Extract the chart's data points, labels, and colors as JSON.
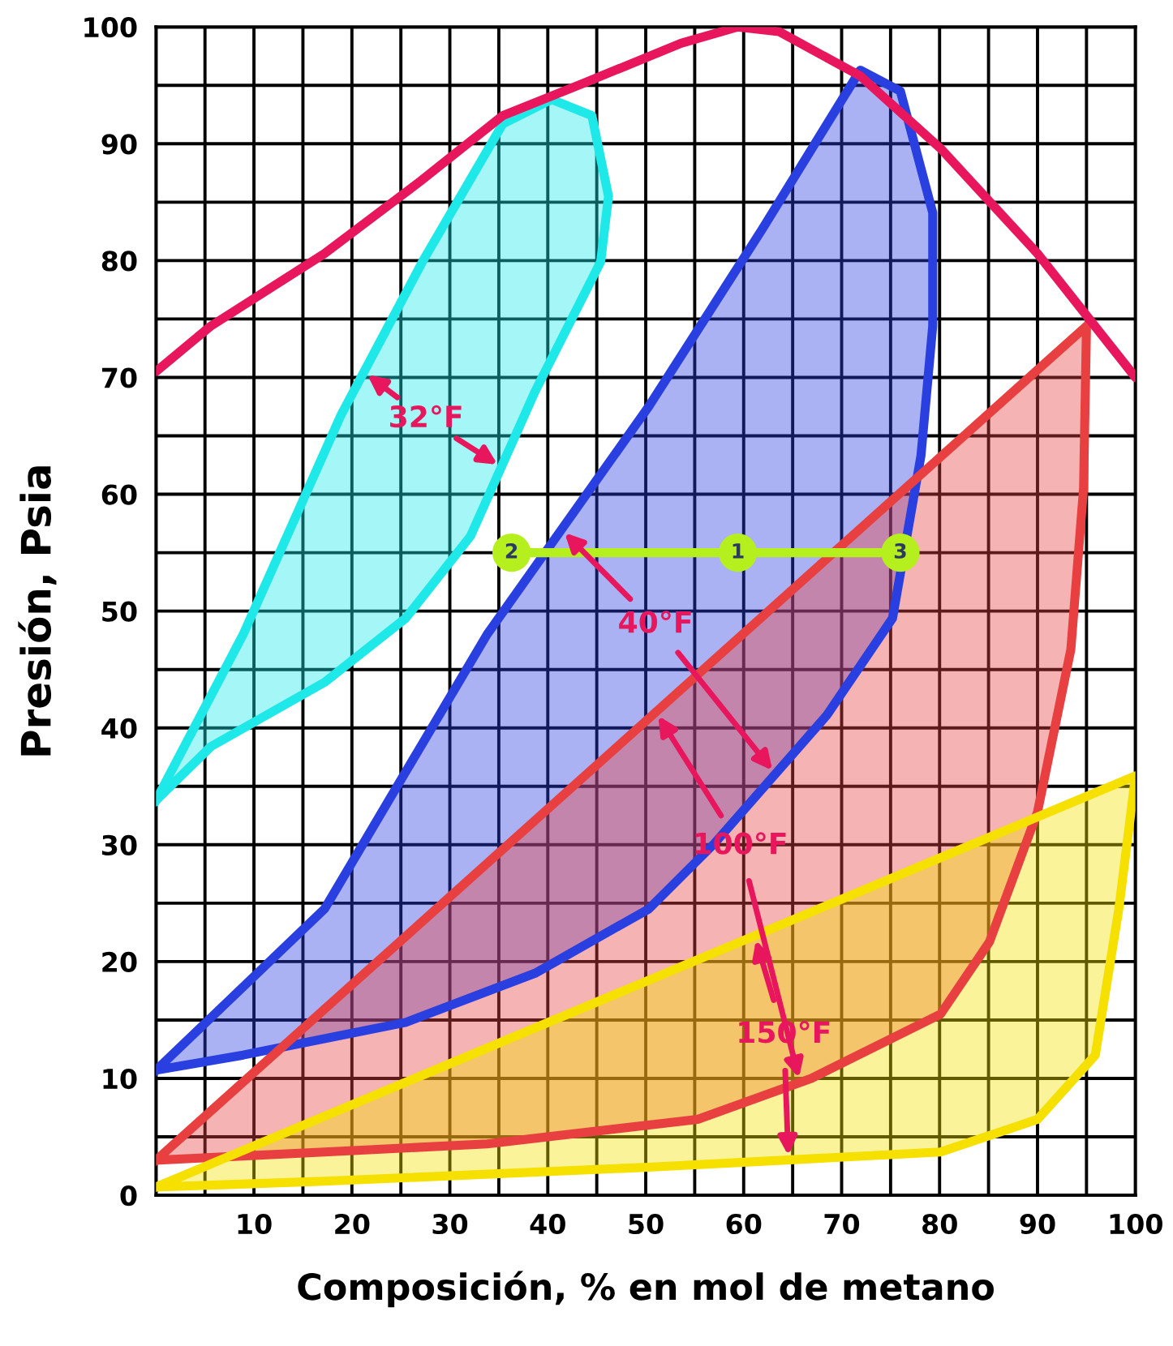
{
  "chart_data": {
    "type": "line",
    "xlabel": "Composición, % en mol de metano",
    "ylabel": "Presión, Psia",
    "xlim": [
      0,
      100
    ],
    "ylim": [
      0,
      100
    ],
    "xticks": [
      {
        "value": 0,
        "label": null
      },
      {
        "value": 5,
        "label": null
      },
      10,
      {
        "value": 15,
        "label": null
      },
      20,
      {
        "value": 25,
        "label": null
      },
      30,
      {
        "value": 35,
        "label": null
      },
      40,
      {
        "value": 45,
        "label": null
      },
      50,
      {
        "value": 55,
        "label": null
      },
      60,
      {
        "value": 65,
        "label": null
      },
      70,
      {
        "value": 75,
        "label": null
      },
      80,
      {
        "value": 85,
        "label": null
      },
      90,
      {
        "value": 95,
        "label": null
      },
      100
    ],
    "yticks": [
      0,
      {
        "value": 5,
        "label": null
      },
      10,
      {
        "value": 15,
        "label": null
      },
      20,
      {
        "value": 25,
        "label": null
      },
      30,
      {
        "value": 35,
        "label": null
      },
      40,
      {
        "value": 45,
        "label": null
      },
      50,
      {
        "value": 55,
        "label": null
      },
      60,
      {
        "value": 65,
        "label": null
      },
      70,
      {
        "value": 75,
        "label": null
      },
      80,
      {
        "value": 85,
        "label": null
      },
      90,
      {
        "value": 95,
        "label": null
      },
      100
    ],
    "grid": true,
    "legend": false,
    "series": [
      {
        "color": "#e8175d",
        "x": [
          0,
          5.6,
          17.2,
          27,
          35.4,
          43.7,
          53.6,
          59.4,
          63.6,
          71.9,
          80.1,
          90,
          100
        ],
        "values": [
          70.5,
          74.4,
          80.6,
          86.8,
          92.4,
          95.2,
          98.6,
          100,
          99.6,
          95.8,
          89.6,
          80.6,
          70
        ]
      },
      {
        "type": "area",
        "name": "32°F",
        "color": "#1ee8e8",
        "x": [
          0,
          8.9,
          18.9,
          27.2,
          35.4,
          40.4,
          44.5,
          46.2,
          45.4,
          38.7,
          32.1,
          25.5,
          17.2,
          5.6,
          0
        ],
        "values": [
          33.8,
          48,
          66.8,
          79.9,
          91.7,
          93.8,
          92.4,
          85.5,
          79.9,
          68.8,
          56.4,
          49.4,
          43.9,
          38.4,
          33.8
        ]
      },
      {
        "type": "area",
        "name": "40°F",
        "color": "#2a3fe0",
        "x": [
          0,
          17.2,
          33.8,
          50.3,
          61.9,
          71.9,
          76,
          79.3,
          79.3,
          78.1,
          75.2,
          68.5,
          57,
          50.3,
          38.7,
          25.5,
          8.9,
          0
        ],
        "values": [
          10.7,
          24.5,
          48,
          67.5,
          82.7,
          96.3,
          94.5,
          84.1,
          74.4,
          63.3,
          49.4,
          41.1,
          30.1,
          24.5,
          19,
          14.8,
          12,
          10.7
        ]
      },
      {
        "type": "area",
        "name": "100°F",
        "color": "#e84040",
        "x": [
          0,
          95,
          94.7,
          93.4,
          90,
          85.1,
          80.1,
          66.9,
          55.3,
          33.8,
          17.2,
          0
        ],
        "values": [
          3,
          74.4,
          60.5,
          46.7,
          32.8,
          21.7,
          15.5,
          10,
          6.5,
          4.4,
          3.7,
          3
        ]
      },
      {
        "type": "area",
        "name": "150°F",
        "color": "#f5e000",
        "x": [
          0,
          100,
          98.3,
          95.9,
          90,
          80.1,
          50.3,
          17.2,
          0
        ],
        "values": [
          0.7,
          35.9,
          24.5,
          12,
          6.5,
          3.7,
          2.4,
          1.2,
          0.7
        ]
      },
      {
        "type": "line",
        "color": "#b5f01e",
        "marker": "circle",
        "x": [
          36.3,
          59.4,
          76
        ],
        "values": [
          55,
          55,
          55
        ]
      }
    ],
    "annotations": [
      {
        "text": "2",
        "x": 36.3,
        "y": 55
      },
      {
        "text": "1",
        "x": 59.4,
        "y": 55
      },
      {
        "text": "3",
        "x": 76,
        "y": 55
      }
    ]
  }
}
